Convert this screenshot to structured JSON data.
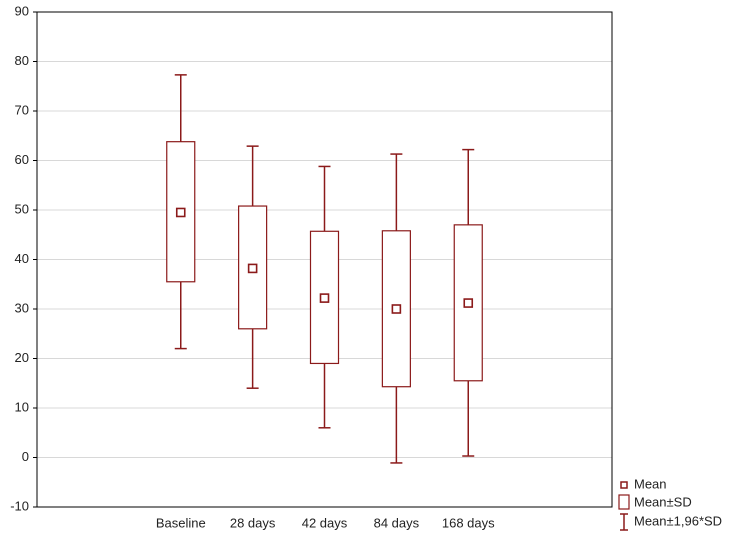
{
  "chart_data": {
    "type": "box",
    "categories": [
      "Baseline",
      "28 days",
      "42 days",
      "84 days",
      "168 days"
    ],
    "series": [
      {
        "name": "Mean",
        "values": [
          49.5,
          38.2,
          32.2,
          30,
          31.2
        ]
      },
      {
        "name": "Mean±SD",
        "low": [
          35.5,
          26,
          19,
          14.3,
          15.5
        ],
        "high": [
          63.8,
          50.8,
          45.7,
          45.8,
          47
        ]
      },
      {
        "name": "Mean±1,96*SD",
        "low": [
          22,
          14,
          6,
          -1.1,
          0.3
        ],
        "high": [
          77.3,
          62.9,
          58.8,
          61.3,
          62.2
        ]
      }
    ],
    "color": "#8b1a1a",
    "ylim": [
      -10,
      90
    ],
    "yticks": [
      -10,
      0,
      10,
      20,
      30,
      40,
      50,
      60,
      70,
      80,
      90
    ],
    "grid": true
  }
}
